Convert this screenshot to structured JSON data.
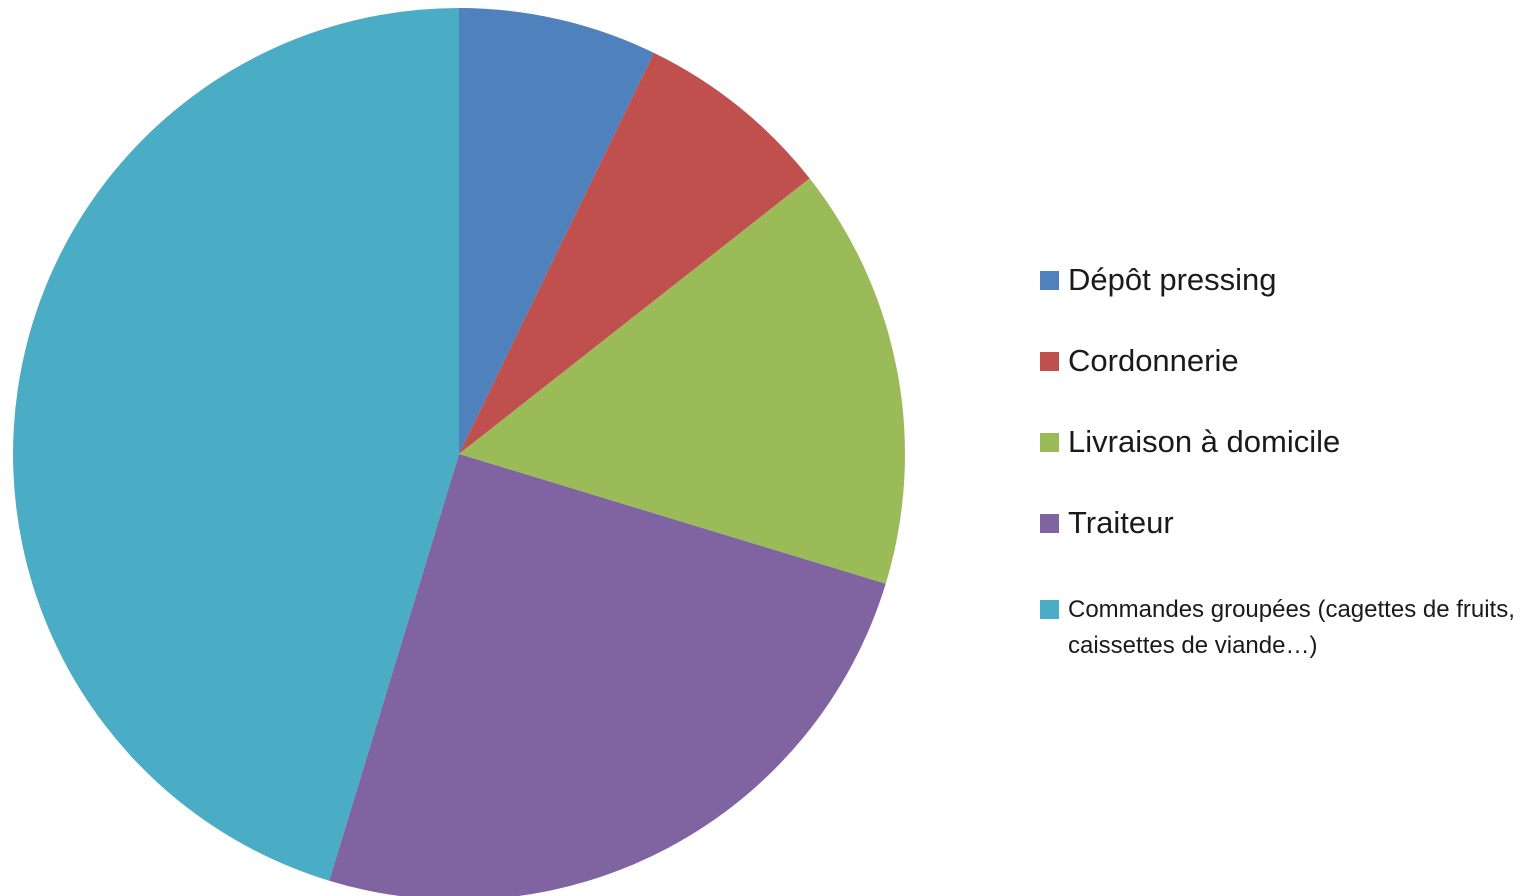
{
  "chart_data": {
    "type": "pie",
    "title": "",
    "legend_position": "right",
    "categories": [
      "Dépôt pressing",
      "Cordonnerie",
      "Livraison à domicile",
      "Traiteur",
      "Commandes groupées (cagettes de fruits, caissettes de viande…)"
    ],
    "values": [
      7.2,
      7.2,
      15.3,
      25.0,
      45.3
    ],
    "colors": [
      "#4F81BD",
      "#C0504D",
      "#9BBB59",
      "#8064A2",
      "#4BACC6"
    ],
    "start_angle": "12 o'clock",
    "direction": "clockwise"
  }
}
